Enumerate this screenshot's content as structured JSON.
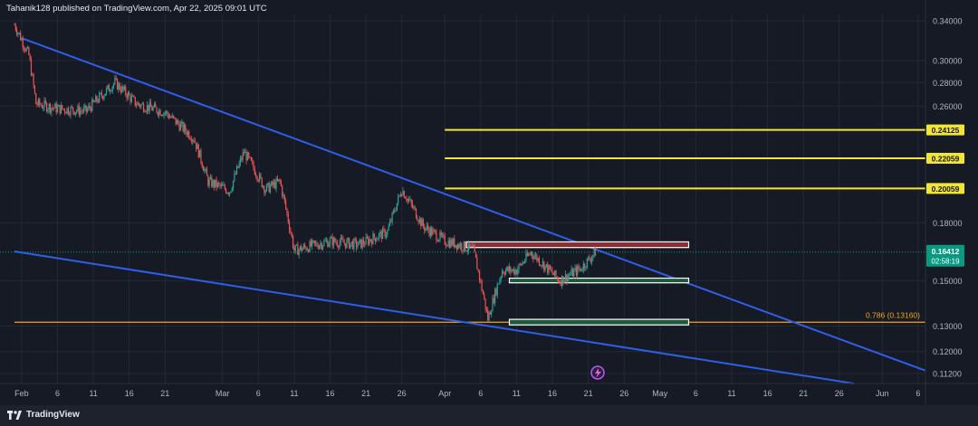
{
  "header": {
    "publisher_line": "Tahanik128 published on TradingView.com, Apr 22, 2025 09:01 UTC"
  },
  "footer": {
    "brand": "TradingView",
    "logo_icon": "tradingview-logo-icon"
  },
  "colors": {
    "background": "#161a25",
    "grid": "#232836",
    "trendline": "#2f5ee8",
    "yellow_level": "#f2e533",
    "fib_level": "#f7a21b",
    "bull": "#26a69a",
    "bear": "#ef5350",
    "price_badge": "#089981",
    "resistance_zone": "#8c2d34",
    "support_zone": "#1e5a3a"
  },
  "chart_data": {
    "type": "candlestick",
    "title": "",
    "xlabel": "",
    "ylabel": "",
    "y_scale": "log",
    "ylim": [
      0.1085,
      0.347
    ],
    "grid": true,
    "x_ticks": [
      "Feb",
      "6",
      "11",
      "16",
      "21",
      "Mar",
      "6",
      "11",
      "16",
      "21",
      "26",
      "Apr",
      "6",
      "11",
      "16",
      "21",
      "26",
      "May",
      "6",
      "11",
      "16",
      "21",
      "26",
      "Jun",
      "6"
    ],
    "y_ticks": [
      "0.34000",
      "0.30000",
      "0.28000",
      "0.26000",
      "0.18000",
      "0.15000",
      "0.13000",
      "0.12000",
      "0.11200"
    ],
    "close_points": [
      {
        "x": "2025-01-31",
        "y": 0.336
      },
      {
        "x": "2025-02-02",
        "y": 0.305
      },
      {
        "x": "2025-02-03",
        "y": 0.262
      },
      {
        "x": "2025-02-06",
        "y": 0.258
      },
      {
        "x": "2025-02-10",
        "y": 0.256
      },
      {
        "x": "2025-02-14",
        "y": 0.28
      },
      {
        "x": "2025-02-17",
        "y": 0.262
      },
      {
        "x": "2025-02-21",
        "y": 0.255
      },
      {
        "x": "2025-02-25",
        "y": 0.235
      },
      {
        "x": "2025-02-27",
        "y": 0.205
      },
      {
        "x": "2025-03-02",
        "y": 0.199
      },
      {
        "x": "2025-03-04",
        "y": 0.225
      },
      {
        "x": "2025-03-07",
        "y": 0.2
      },
      {
        "x": "2025-03-09",
        "y": 0.205
      },
      {
        "x": "2025-03-11",
        "y": 0.165
      },
      {
        "x": "2025-03-13",
        "y": 0.167
      },
      {
        "x": "2025-03-16",
        "y": 0.17
      },
      {
        "x": "2025-03-20",
        "y": 0.168
      },
      {
        "x": "2025-03-24",
        "y": 0.175
      },
      {
        "x": "2025-03-26",
        "y": 0.2
      },
      {
        "x": "2025-03-29",
        "y": 0.178
      },
      {
        "x": "2025-04-01",
        "y": 0.17
      },
      {
        "x": "2025-04-03",
        "y": 0.168
      },
      {
        "x": "2025-04-05",
        "y": 0.165
      },
      {
        "x": "2025-04-07",
        "y": 0.133
      },
      {
        "x": "2025-04-09",
        "y": 0.155
      },
      {
        "x": "2025-04-11",
        "y": 0.155
      },
      {
        "x": "2025-04-13",
        "y": 0.164
      },
      {
        "x": "2025-04-15",
        "y": 0.157
      },
      {
        "x": "2025-04-17",
        "y": 0.15
      },
      {
        "x": "2025-04-20",
        "y": 0.156
      },
      {
        "x": "2025-04-22",
        "y": 0.16412
      }
    ],
    "horizontal_levels": [
      {
        "price": 0.24125,
        "label": "0.24125",
        "color": "#f2e533",
        "from": "2025-04-01"
      },
      {
        "price": 0.22059,
        "label": "0.22059",
        "color": "#f2e533",
        "from": "2025-04-01"
      },
      {
        "price": 0.20059,
        "label": "0.20059",
        "color": "#f2e533",
        "from": "2025-04-01"
      },
      {
        "price": 0.1316,
        "label": "0.786 (0.13160)",
        "color": "#f7a21b",
        "from": "2025-01-31"
      }
    ],
    "zones": [
      {
        "name": "resistance",
        "from": "2025-04-04",
        "to": "2025-05-05",
        "top": 0.1695,
        "bottom": 0.1665
      },
      {
        "name": "support-upper",
        "from": "2025-04-10",
        "to": "2025-05-05",
        "top": 0.1512,
        "bottom": 0.149
      },
      {
        "name": "support-lower",
        "from": "2025-04-10",
        "to": "2025-05-05",
        "top": 0.1328,
        "bottom": 0.1305
      }
    ],
    "trendlines": [
      {
        "name": "upper-trendline",
        "from": {
          "x": "2025-02-01",
          "y": 0.322
        },
        "to": {
          "x": "2025-06-07",
          "y": 0.113
        }
      },
      {
        "name": "lower-trendline",
        "from": {
          "x": "2025-01-31",
          "y": 0.1645
        },
        "to": {
          "x": "2025-05-28",
          "y": 0.1085
        }
      }
    ],
    "current_price": {
      "value": "0.16412",
      "countdown": "02:58:19"
    }
  }
}
